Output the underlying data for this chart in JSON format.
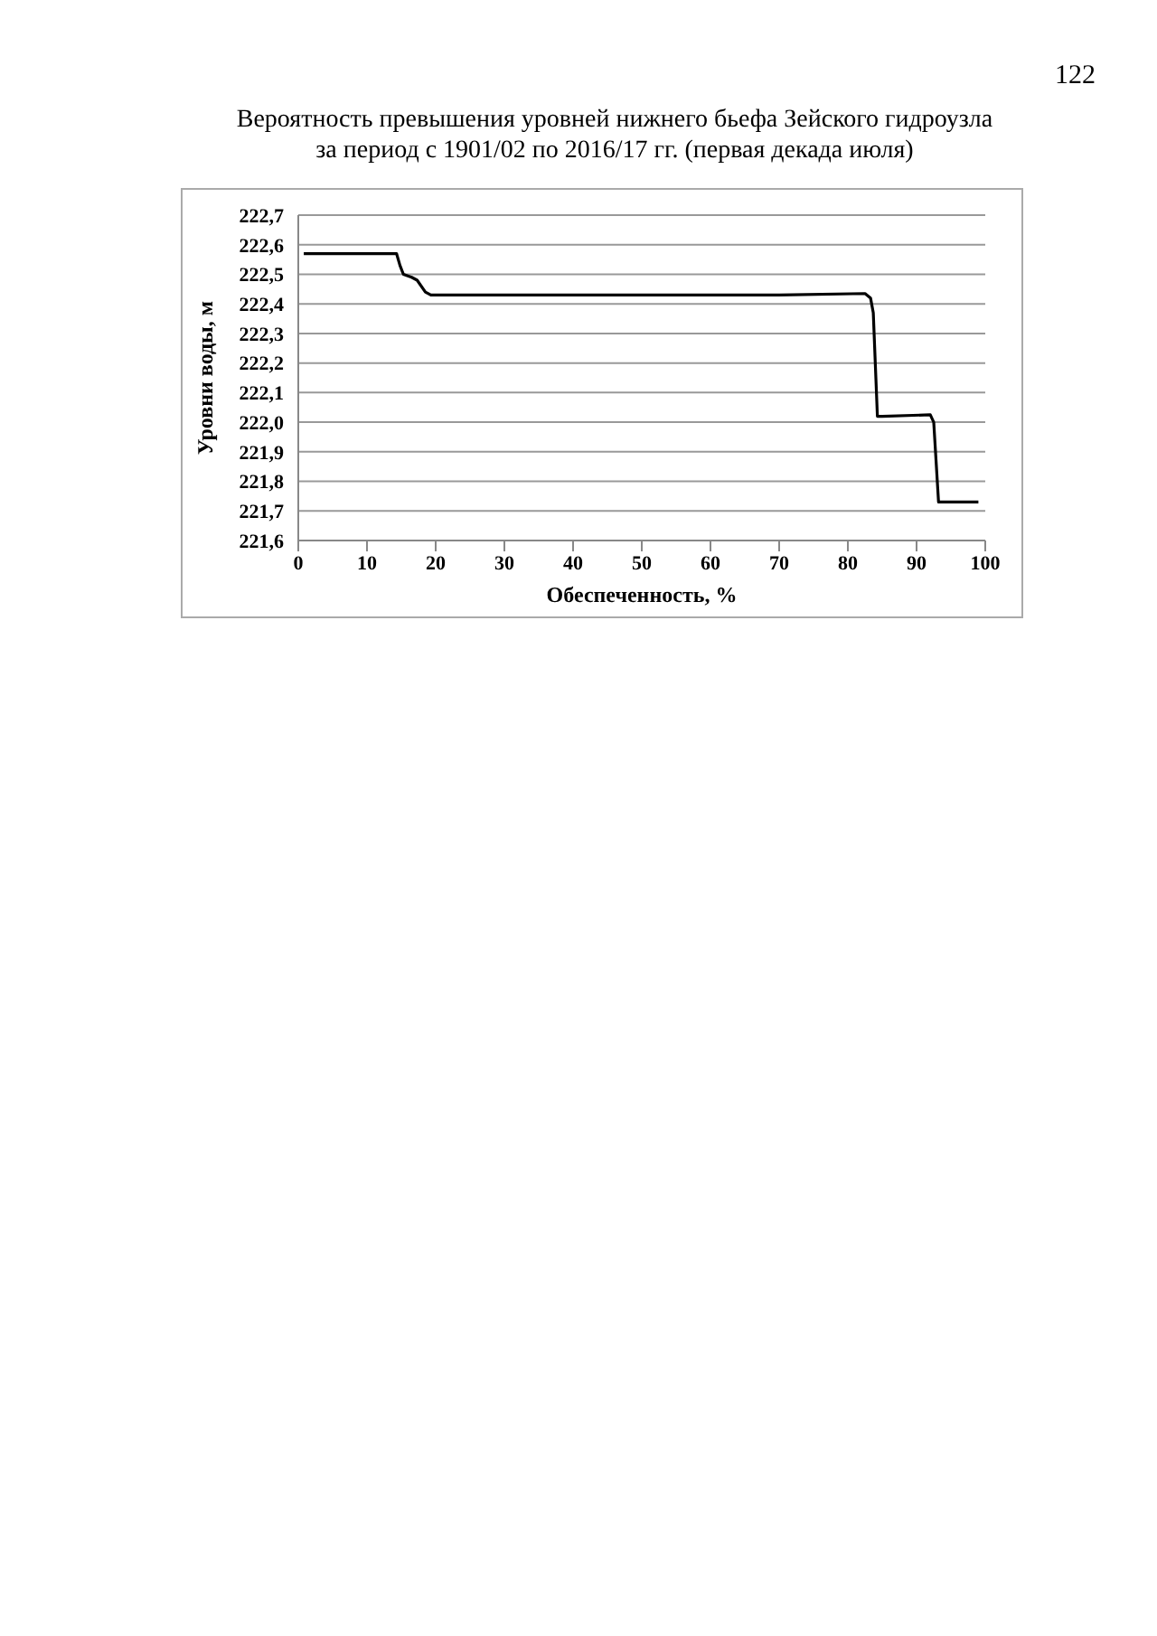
{
  "chart_data": {
    "type": "line",
    "title": "Вероятность превышения уровней нижнего бьефа Зейского гидроузла\nза период с 1901/02 по 2016/17 гг. (первая декада июля)",
    "xlabel": "Обеспеченность, %",
    "ylabel": "Уровни воды, м",
    "annotations": [
      "122"
    ],
    "series": [
      {
        "color": "#000000",
        "x": [
          0.8,
          14.3,
          14.8,
          15.3,
          16.5,
          17.3,
          18.5,
          19.3,
          50,
          70,
          82.5,
          83.3,
          83.7,
          84.3,
          85,
          92,
          92.5,
          93.2,
          99
        ],
        "values": [
          222.57,
          222.57,
          222.53,
          222.5,
          222.49,
          222.48,
          222.44,
          222.43,
          222.43,
          222.43,
          222.435,
          222.42,
          222.37,
          222.02,
          222.02,
          222.025,
          222.0,
          221.73,
          221.73
        ]
      }
    ],
    "xlim": [
      0,
      100
    ],
    "xticks": [
      0,
      10,
      20,
      30,
      40,
      50,
      60,
      70,
      80,
      90,
      100
    ],
    "ylim": [
      221.6,
      222.7
    ],
    "yticks": [
      {
        "value": 221.6,
        "label": "221,6"
      },
      {
        "value": 221.7,
        "label": "221,7"
      },
      {
        "value": 221.8,
        "label": "221,8"
      },
      {
        "value": 221.9,
        "label": "221,9"
      },
      {
        "value": 222.0,
        "label": "222,0"
      },
      {
        "value": 222.1,
        "label": "222,1"
      },
      {
        "value": 222.2,
        "label": "222,2"
      },
      {
        "value": 222.3,
        "label": "222,3"
      },
      {
        "value": 222.4,
        "label": "222,4"
      },
      {
        "value": 222.5,
        "label": "222,5"
      },
      {
        "value": 222.6,
        "label": "222,6"
      },
      {
        "value": 222.7,
        "label": "222,7"
      }
    ],
    "grid": "y",
    "legend": false,
    "marker": "none",
    "line_style": "solid"
  }
}
